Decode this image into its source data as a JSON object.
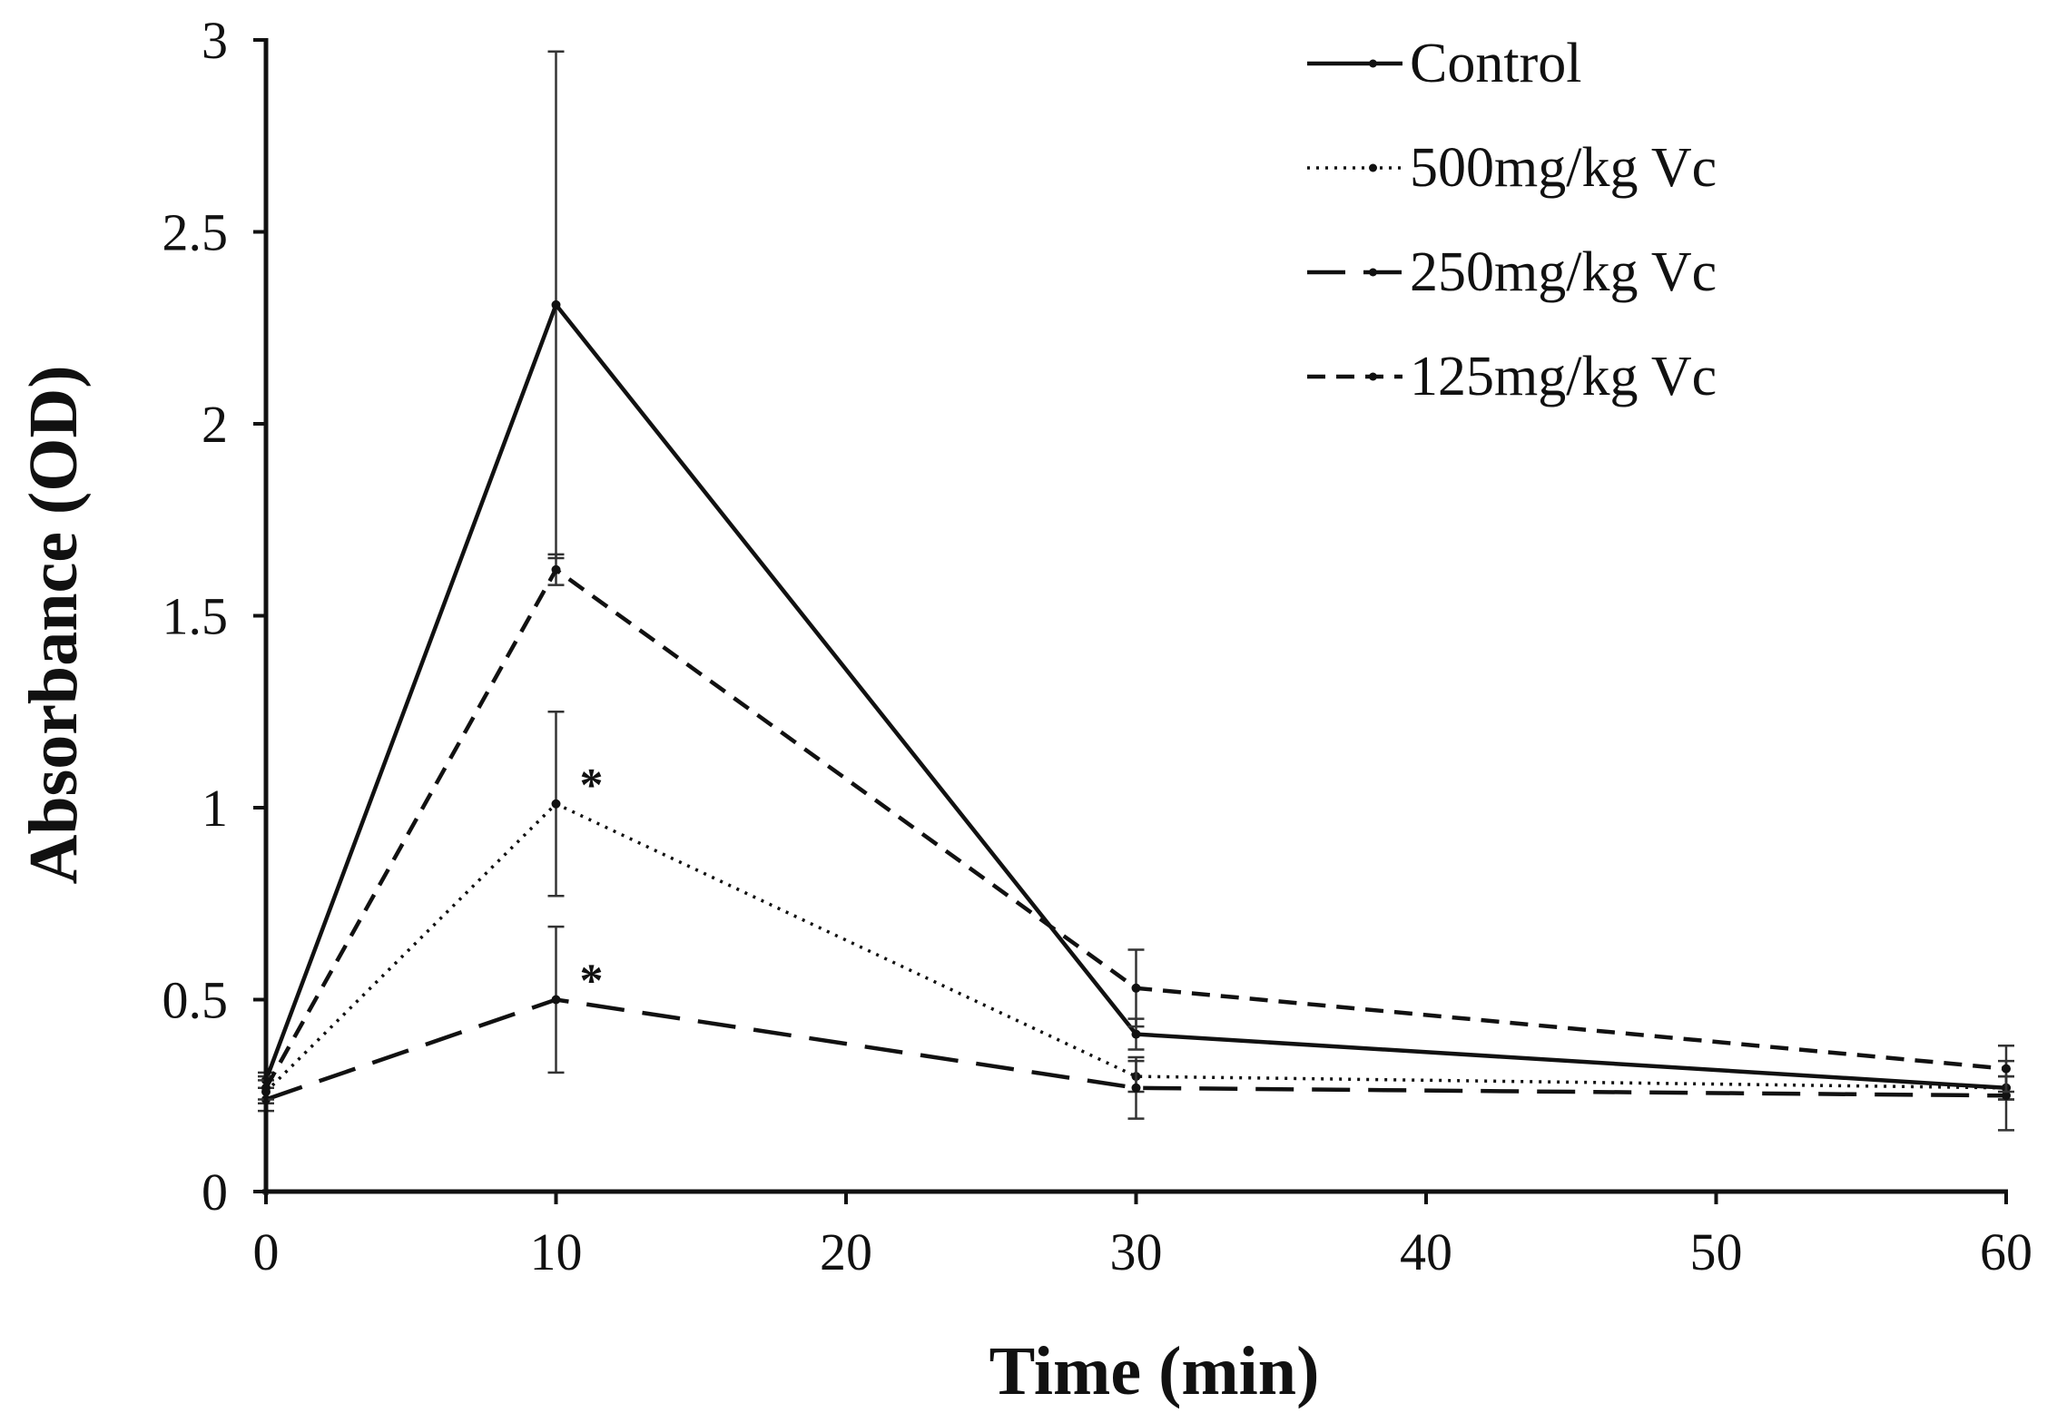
{
  "chart_data": {
    "type": "line",
    "title": "",
    "xlabel": "Time (min)",
    "ylabel": "Absorbance (OD)",
    "x": [
      0,
      10,
      30,
      60
    ],
    "xlim": [
      0,
      60
    ],
    "ylim": [
      0,
      3
    ],
    "xticks": [
      "0",
      "10",
      "20",
      "30",
      "40",
      "50",
      "60"
    ],
    "yticks": [
      "0",
      "0.5",
      "1",
      "1.5",
      "2",
      "2.5",
      "3"
    ],
    "grid": false,
    "legend_position": "top-right",
    "series": [
      {
        "name": "Control",
        "style": "solid",
        "values": [
          0.29,
          2.31,
          0.41,
          0.27
        ],
        "errors": [
          0.02,
          0.66,
          0.04,
          0.03
        ],
        "color": "#111111"
      },
      {
        "name": "500mg/kg Vc",
        "style": "dotted",
        "values": [
          0.26,
          1.01,
          0.3,
          0.27
        ],
        "errors": [
          0.03,
          0.24,
          0.04,
          0.03
        ],
        "color": "#111111"
      },
      {
        "name": "250mg/kg Vc",
        "style": "long-dash",
        "values": [
          0.24,
          0.5,
          0.27,
          0.25
        ],
        "errors": [
          0.03,
          0.19,
          0.08,
          0.09
        ],
        "color": "#111111"
      },
      {
        "name": "125mg/kg Vc",
        "style": "short-dash",
        "values": [
          0.27,
          1.62,
          0.53,
          0.32
        ],
        "errors": [
          0.03,
          0.04,
          0.1,
          0.06
        ],
        "color": "#111111"
      }
    ],
    "annotations": [
      {
        "text": "*",
        "x": 10,
        "y": 1.01,
        "series": "500mg/kg Vc"
      },
      {
        "text": "*",
        "x": 10,
        "y": 0.5,
        "series": "250mg/kg Vc"
      }
    ]
  }
}
